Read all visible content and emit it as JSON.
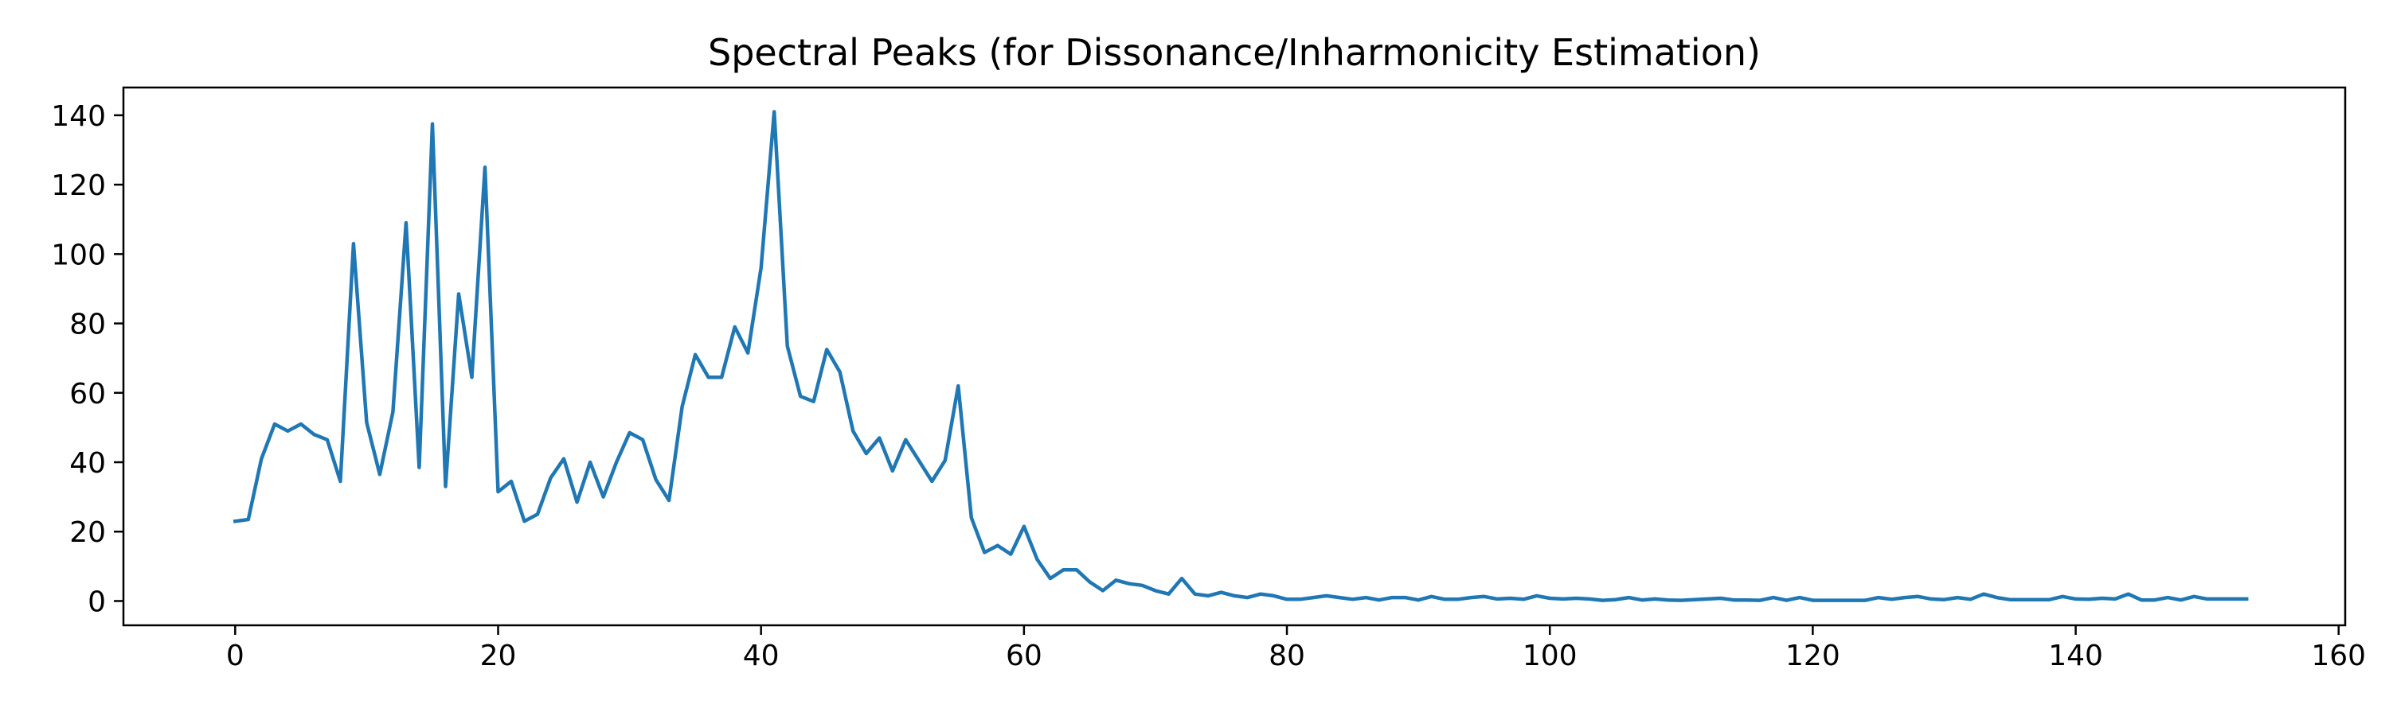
{
  "chart_data": {
    "type": "line",
    "title": "Spectral Peaks (for Dissonance/Inharmonicity Estimation)",
    "xlabel": "",
    "ylabel": "",
    "xlim": [
      -8.5,
      160.5
    ],
    "ylim": [
      -7,
      148
    ],
    "xticks": [
      0,
      20,
      40,
      60,
      80,
      100,
      120,
      140,
      160
    ],
    "yticks": [
      0,
      20,
      40,
      60,
      80,
      100,
      120,
      140
    ],
    "grid": false,
    "legend": "none",
    "line_color": "#1f77b4",
    "series": [
      {
        "x": [
          0,
          1,
          2,
          3,
          4,
          5,
          6,
          7,
          8,
          9,
          10,
          11,
          12,
          13,
          14,
          15,
          16,
          17,
          18,
          19,
          20,
          21,
          22,
          23,
          24,
          25,
          26,
          27,
          28,
          29,
          30,
          31,
          32,
          33,
          34,
          35,
          36,
          37,
          38,
          39,
          40,
          41,
          42,
          43,
          44,
          45,
          46,
          47,
          48,
          49,
          50,
          51,
          52,
          53,
          54,
          55,
          56,
          57,
          58,
          59,
          60,
          61,
          62,
          63,
          64,
          65,
          66,
          67,
          68,
          69,
          70,
          71,
          72,
          73,
          74,
          75,
          76,
          77,
          78,
          79,
          80,
          81,
          82,
          83,
          84,
          85,
          86,
          87,
          88,
          89,
          90,
          91,
          92,
          93,
          94,
          95,
          96,
          97,
          98,
          99,
          100,
          101,
          102,
          103,
          104,
          105,
          106,
          107,
          108,
          109,
          110,
          111,
          112,
          113,
          114,
          115,
          116,
          117,
          118,
          119,
          120,
          121,
          122,
          123,
          124,
          125,
          126,
          127,
          128,
          129,
          130,
          131,
          132,
          133,
          134,
          135,
          136,
          137,
          138,
          139,
          140,
          141,
          142,
          143,
          144,
          145,
          146,
          147,
          148,
          149,
          150,
          151,
          152,
          153
        ],
        "y": [
          23,
          23.5,
          41,
          51,
          49,
          51,
          48,
          46.5,
          34.5,
          103,
          51.5,
          36.5,
          54.5,
          109,
          38.5,
          137.5,
          33,
          88.5,
          64.5,
          125,
          31.5,
          34.5,
          23,
          25,
          35.5,
          41,
          28.5,
          40,
          30,
          40,
          48.5,
          46.5,
          35,
          29,
          56,
          71,
          64.5,
          64.5,
          79,
          71.5,
          96,
          141,
          73.5,
          59,
          57.5,
          72.5,
          66,
          49,
          42.5,
          47,
          37.5,
          46.5,
          40.5,
          34.5,
          40.5,
          62,
          24,
          14,
          16,
          13.5,
          21.5,
          12,
          6.5,
          9,
          9,
          5.5,
          3,
          6,
          5,
          4.5,
          3,
          2,
          6.5,
          2,
          1.5,
          2.5,
          1.5,
          1,
          2,
          1.5,
          0.5,
          0.5,
          1,
          1.5,
          1,
          0.5,
          1,
          0.3,
          1,
          1,
          0.3,
          1.3,
          0.5,
          0.5,
          1,
          1.3,
          0.6,
          0.8,
          0.5,
          1.5,
          0.8,
          0.6,
          0.8,
          0.6,
          0.2,
          0.4,
          1,
          0.3,
          0.6,
          0.3,
          0.2,
          0.4,
          0.6,
          0.8,
          0.3,
          0.3,
          0.2,
          1,
          0.2,
          1,
          0.2,
          0.2,
          0.2,
          0.2,
          0.2,
          1,
          0.5,
          1,
          1.3,
          0.6,
          0.4,
          1,
          0.5,
          2,
          1,
          0.4,
          0.4,
          0.4,
          0.4,
          1.3,
          0.6,
          0.5,
          0.8,
          0.6,
          2,
          0.3,
          0.3,
          1,
          0.3,
          1.3,
          0.6,
          0.6,
          0.6,
          0.6
        ]
      }
    ]
  }
}
